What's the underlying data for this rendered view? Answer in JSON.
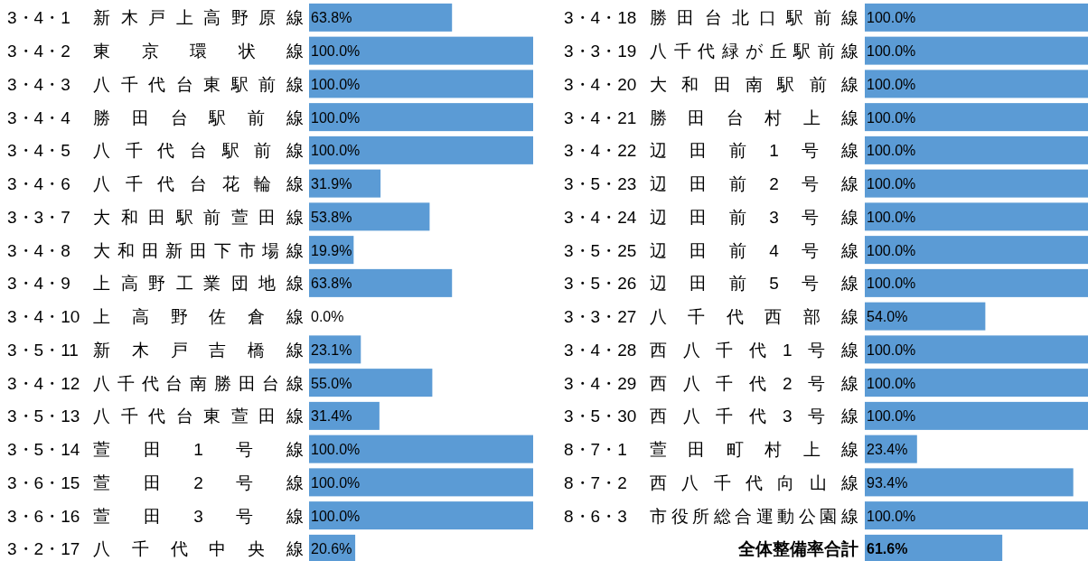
{
  "chart_data": [
    {
      "type": "bar",
      "orientation": "horizontal",
      "color": "#5b9bd5",
      "xlim": [
        0,
        100
      ],
      "tick_labels": "y",
      "categories": [
        "3・4・1新木戸上高野原線",
        "3・4・2東京環状線",
        "3・4・3八千代台東駅前線",
        "3・4・4勝田台駅前線",
        "3・4・5八千代台駅前線",
        "3・4・6八千代台花輪線",
        "3・3・7大和田駅前萱田線",
        "3・4・8大和田新田下市場線",
        "3・4・9上高野工業団地線",
        "3・4・10上高野佐倉線",
        "3・5・11新木戸吉橋線",
        "3・4・12八千代台南勝田台線",
        "3・5・13八千代台東萱田線",
        "3・5・14萱田1号線",
        "3・6・15萱田2号線",
        "3・6・16萱田3号線",
        "3・2・17八千代中央線"
      ],
      "values": [
        63.8,
        100,
        100,
        100,
        100,
        31.9,
        53.8,
        19.9,
        63.8,
        0,
        23.1,
        55,
        31.4,
        100,
        100,
        100,
        20.6
      ],
      "value_labels": [
        "63.8%",
        "100.0%",
        "100.0%",
        "100.0%",
        "100.0%",
        "31.9%",
        "53.8%",
        "19.9%",
        "63.8%",
        "0.0%",
        "23.1%",
        "55.0%",
        "31.4%",
        "100.0%",
        "100.0%",
        "100.0%",
        "20.6%"
      ]
    },
    {
      "type": "bar",
      "orientation": "horizontal",
      "color": "#5b9bd5",
      "xlim": [
        0,
        100
      ],
      "tick_labels": "y",
      "categories": [
        "3・4・18勝田台北口駅前線",
        "3・3・19八千代緑が丘駅前線",
        "3・4・20大和田南駅前線",
        "3・4・21勝田台村上線",
        "3・4・22辺田前1号線",
        "3・5・23辺田前2号線",
        "3・4・24辺田前3号線",
        "3・5・25辺田前4号線",
        "3・5・26辺田前5号線",
        "3・3・27八千代西部線",
        "3・4・28西八千代1号線",
        "3・4・29西八千代2号線",
        "3・5・30西八千代3号線",
        "8・7・1萱田町村上線",
        "8・7・2西八千代向山線",
        "8・6・3市役所総合運動公園線",
        "全体整備率合計"
      ],
      "values": [
        100,
        100,
        100,
        100,
        100,
        100,
        100,
        100,
        100,
        54,
        100,
        100,
        100,
        23.4,
        93.4,
        100,
        61.6
      ],
      "value_labels": [
        "100.0%",
        "100.0%",
        "100.0%",
        "100.0%",
        "100.0%",
        "100.0%",
        "100.0%",
        "100.0%",
        "100.0%",
        "54.0%",
        "100.0%",
        "100.0%",
        "100.0%",
        "23.4%",
        "93.4%",
        "100.0%",
        "61.6%"
      ]
    }
  ]
}
